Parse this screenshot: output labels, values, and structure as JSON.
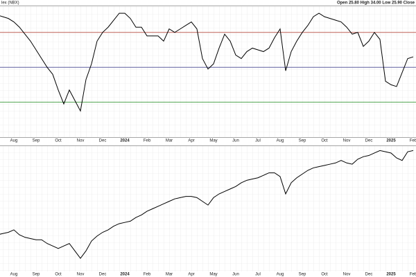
{
  "header": {
    "symbol": "lex (NBX)",
    "quote": "Open 25.80  High 34.00  Low 25.90  Close"
  },
  "chart_data": [
    {
      "type": "line",
      "color": "#000000",
      "ylim": [
        10,
        85
      ],
      "reference_lines": [
        {
          "value": 70,
          "color": "#b5483f"
        },
        {
          "value": 50,
          "color": "#46468f"
        },
        {
          "value": 30,
          "color": "#3b9a3b"
        }
      ],
      "categories": [
        null,
        null,
        null,
        "Aug",
        null,
        null,
        null,
        "Sep",
        null,
        null,
        null,
        "Oct",
        null,
        null,
        null,
        "Nov",
        null,
        null,
        null,
        "Dec",
        null,
        null,
        null,
        "2024",
        null,
        null,
        null,
        "Feb",
        null,
        null,
        null,
        "Mar",
        null,
        null,
        null,
        "Apr",
        null,
        null,
        null,
        "May",
        null,
        null,
        null,
        "Jun",
        null,
        null,
        null,
        "Jul",
        null,
        null,
        null,
        "Aug",
        null,
        null,
        null,
        "Sep",
        null,
        null,
        null,
        "Oct",
        null,
        null,
        null,
        "Nov",
        null,
        null,
        null,
        "Dec",
        null,
        null,
        null,
        "2025",
        null,
        null,
        null,
        "Feb"
      ],
      "values": [
        80,
        79,
        78,
        76,
        73,
        69,
        65,
        60,
        55,
        50,
        46,
        37,
        29,
        37,
        31,
        25,
        43,
        52,
        65,
        70,
        73,
        77,
        81,
        81,
        78,
        73,
        73,
        68,
        68,
        68,
        65,
        72,
        70,
        72,
        74,
        76,
        72,
        55,
        49,
        52,
        61,
        69,
        65,
        57,
        55,
        59,
        61,
        60,
        59,
        61,
        67,
        72,
        48,
        59,
        65,
        70,
        74,
        79,
        81,
        79,
        78,
        77,
        76,
        73,
        69,
        70,
        62,
        65,
        70,
        66,
        42,
        40,
        39,
        47,
        55,
        56
      ]
    },
    {
      "type": "line",
      "color": "#000000",
      "ylim": [
        0,
        100
      ],
      "categories": [
        null,
        null,
        null,
        "Aug",
        null,
        null,
        null,
        "Sep",
        null,
        null,
        null,
        "Oct",
        null,
        null,
        null,
        "Nov",
        null,
        null,
        null,
        "Dec",
        null,
        null,
        null,
        "2024",
        null,
        null,
        null,
        "Feb",
        null,
        null,
        null,
        "Mar",
        null,
        null,
        null,
        "Apr",
        null,
        null,
        null,
        "May",
        null,
        null,
        null,
        "Jun",
        null,
        null,
        null,
        "Jul",
        null,
        null,
        null,
        "Aug",
        null,
        null,
        null,
        "Sep",
        null,
        null,
        null,
        "Oct",
        null,
        null,
        null,
        "Nov",
        null,
        null,
        null,
        "Dec",
        null,
        null,
        null,
        "2025",
        null,
        null,
        null,
        "Feb"
      ],
      "values": [
        29,
        30,
        31,
        33,
        29,
        27,
        26,
        25,
        25,
        22,
        20,
        18,
        20,
        22,
        16,
        10,
        16,
        24,
        28,
        31,
        33,
        36,
        38,
        39,
        40,
        43,
        45,
        48,
        50,
        52,
        54,
        56,
        58,
        59,
        60,
        60,
        59,
        56,
        53,
        59,
        62,
        64,
        66,
        68,
        71,
        73,
        74,
        75,
        77,
        79,
        79,
        76,
        62,
        71,
        75,
        78,
        81,
        83,
        84,
        85,
        86,
        87,
        89,
        87,
        86,
        90,
        92,
        93,
        95,
        97,
        96,
        95,
        91,
        89,
        96,
        97
      ]
    }
  ]
}
